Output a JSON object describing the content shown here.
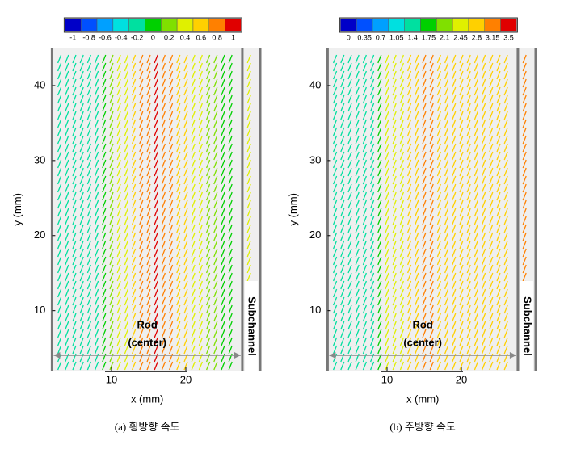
{
  "chart_data": [
    {
      "type": "vector-field",
      "caption": "(a) 횡방향 속도",
      "xlabel": "x (mm)",
      "ylabel": "y (mm)",
      "xlim": [
        2,
        30
      ],
      "ylim": [
        2,
        45
      ],
      "xticks": [
        10,
        20
      ],
      "yticks": [
        10,
        20,
        30,
        40
      ],
      "annotations": [
        "Rod",
        "(center)",
        "Subchannel"
      ],
      "colorbar": {
        "ticks": [
          -1,
          -0.8,
          -0.6,
          -0.4,
          -0.2,
          0,
          0.2,
          0.4,
          0.6,
          0.8,
          1
        ],
        "colors": [
          "#0000c8",
          "#0050ff",
          "#00a0ff",
          "#00e0e0",
          "#00e0a0",
          "#00d000",
          "#80e000",
          "#e0f000",
          "#ffd000",
          "#ff8000",
          "#e00000"
        ]
      },
      "x": [
        3,
        4,
        5,
        6,
        7,
        8,
        9,
        10,
        11,
        12,
        13,
        14,
        15,
        16,
        17,
        18,
        19,
        20,
        21,
        22,
        23,
        24,
        25,
        26,
        28.5
      ],
      "values": [
        -0.2,
        -0.2,
        -0.2,
        -0.2,
        -0.2,
        -0.2,
        0,
        0.2,
        0.3,
        0.4,
        0.6,
        0.7,
        0.8,
        0.9,
        0.8,
        0.7,
        0.6,
        0.5,
        0.4,
        0.3,
        0.2,
        0.1,
        0,
        0,
        0.4
      ]
    },
    {
      "type": "vector-field",
      "caption": "(b) 주방향 속도",
      "xlabel": "x (mm)",
      "ylabel": "y (mm)",
      "xlim": [
        2,
        30
      ],
      "ylim": [
        2,
        45
      ],
      "xticks": [
        10,
        20
      ],
      "yticks": [
        10,
        20,
        30,
        40
      ],
      "annotations": [
        "Rod",
        "(center)",
        "Subchannel"
      ],
      "colorbar": {
        "ticks": [
          0,
          0.35,
          0.7,
          1.05,
          1.4,
          1.75,
          2.1,
          2.45,
          2.8,
          3.15,
          3.5
        ],
        "colors": [
          "#0000c8",
          "#0050ff",
          "#00a0ff",
          "#00e0e0",
          "#00e0a0",
          "#00d000",
          "#80e000",
          "#e0f000",
          "#ffd000",
          "#ff8000",
          "#e00000"
        ]
      },
      "x": [
        3,
        4,
        5,
        6,
        7,
        8,
        9,
        10,
        11,
        12,
        13,
        14,
        15,
        16,
        17,
        18,
        19,
        20,
        21,
        22,
        23,
        24,
        25,
        26,
        28.5
      ],
      "values": [
        1.4,
        1.4,
        1.4,
        1.4,
        1.4,
        1.4,
        1.75,
        2.3,
        2.5,
        2.6,
        2.8,
        2.9,
        3.0,
        3.0,
        2.9,
        2.8,
        2.8,
        2.8,
        2.9,
        2.9,
        2.9,
        2.9,
        2.8,
        2.8,
        3.3
      ]
    }
  ]
}
